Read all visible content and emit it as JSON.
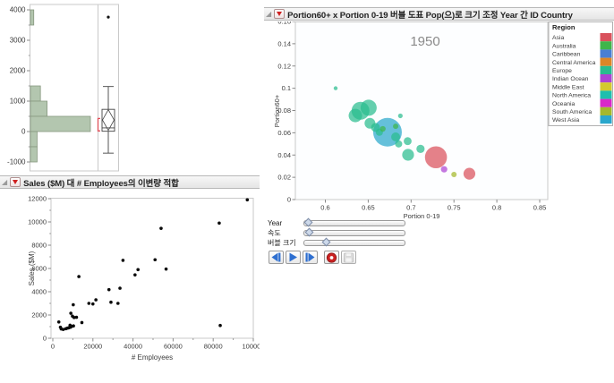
{
  "panels": {
    "bivariate_title": "Sales ($M) 대 # Employees의 이변량 적합",
    "bubble_title": "Portion60+ x Portion 0-19 버블 도표 Pop(으)로 크기 조정 Year 간 ID Country"
  },
  "legend": {
    "title": "Region",
    "items": [
      {
        "label": "Asia",
        "color": "#d9515c"
      },
      {
        "label": "Australia",
        "color": "#3fb54b"
      },
      {
        "label": "Caribbean",
        "color": "#4a7fd4"
      },
      {
        "label": "Central America",
        "color": "#dd8628"
      },
      {
        "label": "Europe",
        "color": "#29bd8f"
      },
      {
        "label": "Indian Ocean",
        "color": "#ad44d4"
      },
      {
        "label": "Middle East",
        "color": "#d3ca2f"
      },
      {
        "label": "North America",
        "color": "#1fbfae"
      },
      {
        "label": "Oceania",
        "color": "#d928c9"
      },
      {
        "label": "South America",
        "color": "#a4b82c"
      },
      {
        "label": "West Asia",
        "color": "#2aa7cc"
      }
    ]
  },
  "controls": {
    "sliders": [
      {
        "label": "Year",
        "value": 0.045
      },
      {
        "label": "속도",
        "value": 0.055
      },
      {
        "label": "버블 크기",
        "value": 0.22
      }
    ],
    "buttons": [
      {
        "name": "step-back",
        "icon": "step-back-icon"
      },
      {
        "name": "play",
        "icon": "play-icon"
      },
      {
        "name": "step-forward",
        "icon": "step-forward-icon"
      },
      {
        "name": "record",
        "icon": "record-icon"
      },
      {
        "name": "save",
        "icon": "save-icon",
        "disabled": true
      }
    ]
  },
  "chart_data": [
    {
      "id": "histogram-boxplot",
      "type": "bar",
      "orientation": "horizontal",
      "ylim": [
        -1294,
        4176
      ],
      "y_ticks": [
        -1000,
        0,
        1000,
        2000,
        3000,
        4000
      ],
      "minor_step": 500,
      "bar_color": "#b3c6af",
      "bar_border": "#87987f",
      "bins": [
        {
          "from": 3500,
          "to": 4000,
          "count": 1
        },
        {
          "from": 1000,
          "to": 1500,
          "count": 3
        },
        {
          "from": 500,
          "to": 1000,
          "count": 5
        },
        {
          "from": 0,
          "to": 500,
          "count": 18
        },
        {
          "from": -500,
          "to": 0,
          "count": 2
        },
        {
          "from": -1000,
          "to": -500,
          "count": 2
        }
      ],
      "boxplot": {
        "outliers": [
          3760
        ],
        "whisker_high": 1480,
        "q3": 730,
        "median": 120,
        "q1": 10,
        "whisker_low": -710,
        "mean_diamond": {
          "center": 380,
          "half_height": 340
        },
        "bracket": [
          20,
          430
        ],
        "bracket_color": "#e0505a"
      }
    },
    {
      "id": "bivariate-scatter",
      "type": "scatter",
      "title": "Sales ($M) 대 # Employees의 이변량 적합",
      "xlabel": "# Employees",
      "ylabel": "Sales ($M)",
      "xlim": [
        0,
        100000
      ],
      "x_ticks": [
        0,
        20000,
        40000,
        60000,
        80000,
        100000
      ],
      "x_minor_step": 10000,
      "ylim": [
        0,
        12000
      ],
      "y_ticks": [
        0,
        2000,
        4000,
        6000,
        8000,
        10000,
        12000
      ],
      "y_minor_step": 1000,
      "dot_color": "#0a0a0a",
      "points": [
        [
          3000,
          1400
        ],
        [
          3800,
          950
        ],
        [
          4200,
          800
        ],
        [
          5200,
          760
        ],
        [
          6500,
          820
        ],
        [
          7300,
          870
        ],
        [
          8000,
          900
        ],
        [
          8800,
          950
        ],
        [
          9400,
          1020
        ],
        [
          10300,
          1060
        ],
        [
          8600,
          1120
        ],
        [
          9000,
          2150
        ],
        [
          9800,
          1900
        ],
        [
          10600,
          1780
        ],
        [
          11800,
          1800
        ],
        [
          10200,
          2880
        ],
        [
          13000,
          5300
        ],
        [
          14500,
          1350
        ],
        [
          18000,
          3000
        ],
        [
          20000,
          2950
        ],
        [
          21500,
          3300
        ],
        [
          28000,
          4180
        ],
        [
          29000,
          3100
        ],
        [
          32500,
          3000
        ],
        [
          33500,
          4300
        ],
        [
          35000,
          6700
        ],
        [
          41000,
          5450
        ],
        [
          42500,
          5900
        ],
        [
          51000,
          6750
        ],
        [
          54000,
          9450
        ],
        [
          56500,
          5950
        ],
        [
          83000,
          9900
        ],
        [
          83500,
          1100
        ],
        [
          97000,
          11900
        ]
      ]
    },
    {
      "id": "bubble-plot",
      "type": "bubble",
      "title": "Portion60+ x Portion 0-19 버블 도표 Pop(으)로 크기 조정 Year 간 ID Country",
      "year_label": "1950",
      "year_label_color": "#8a8a8a",
      "xlabel": "Portion 0-19",
      "ylabel": "Portion60+",
      "xlim": [
        0.565,
        0.8594
      ],
      "x_ticks": [
        0.6,
        0.65,
        0.7,
        0.75,
        0.8,
        0.85
      ],
      "x_tick_labels": [
        "0.6",
        "0.65",
        "0.7",
        "0.75",
        "0.8",
        "0.85"
      ],
      "ylim": [
        0,
        0.16
      ],
      "y_ticks": [
        0,
        0.02,
        0.04,
        0.06,
        0.08,
        0.1,
        0.12,
        0.14,
        0.16
      ],
      "y_tick_labels": [
        "0",
        "0.02",
        "0.04",
        "0.06",
        "0.08",
        "0.1",
        "0.12",
        "0.14",
        "0.16"
      ],
      "bubble_opacity": 0.72,
      "bubbles": [
        {
          "x": 0.612,
          "y": 0.1,
          "r": 2.2,
          "region": "Europe"
        },
        {
          "x": 0.635,
          "y": 0.0755,
          "r": 7.5,
          "region": "Europe"
        },
        {
          "x": 0.641,
          "y": 0.0798,
          "r": 10,
          "region": "Europe"
        },
        {
          "x": 0.6505,
          "y": 0.0825,
          "r": 9,
          "region": "Europe"
        },
        {
          "x": 0.652,
          "y": 0.0685,
          "r": 6,
          "region": "Europe"
        },
        {
          "x": 0.6585,
          "y": 0.0648,
          "r": 5,
          "region": "Europe"
        },
        {
          "x": 0.663,
          "y": 0.0605,
          "r": 4,
          "region": "Europe"
        },
        {
          "x": 0.667,
          "y": 0.0635,
          "r": 3.2,
          "region": "Australia"
        },
        {
          "x": 0.6725,
          "y": 0.0605,
          "r": 16,
          "region": "West Asia"
        },
        {
          "x": 0.682,
          "y": 0.0658,
          "r": 3,
          "region": "Australia"
        },
        {
          "x": 0.6875,
          "y": 0.0752,
          "r": 2.6,
          "region": "Europe"
        },
        {
          "x": 0.682,
          "y": 0.0563,
          "r": 5,
          "region": "Europe"
        },
        {
          "x": 0.6855,
          "y": 0.05,
          "r": 4,
          "region": "Europe"
        },
        {
          "x": 0.696,
          "y": 0.0525,
          "r": 4.4,
          "region": "Europe"
        },
        {
          "x": 0.6965,
          "y": 0.0402,
          "r": 6.6,
          "region": "Europe"
        },
        {
          "x": 0.711,
          "y": 0.0455,
          "r": 4.6,
          "region": "Europe"
        },
        {
          "x": 0.729,
          "y": 0.038,
          "r": 12.3,
          "region": "Asia"
        },
        {
          "x": 0.7385,
          "y": 0.0272,
          "r": 3.6,
          "region": "Indian Ocean"
        },
        {
          "x": 0.75,
          "y": 0.0225,
          "r": 3,
          "region": "South America"
        },
        {
          "x": 0.768,
          "y": 0.0232,
          "r": 6.6,
          "region": "Asia"
        }
      ]
    }
  ]
}
